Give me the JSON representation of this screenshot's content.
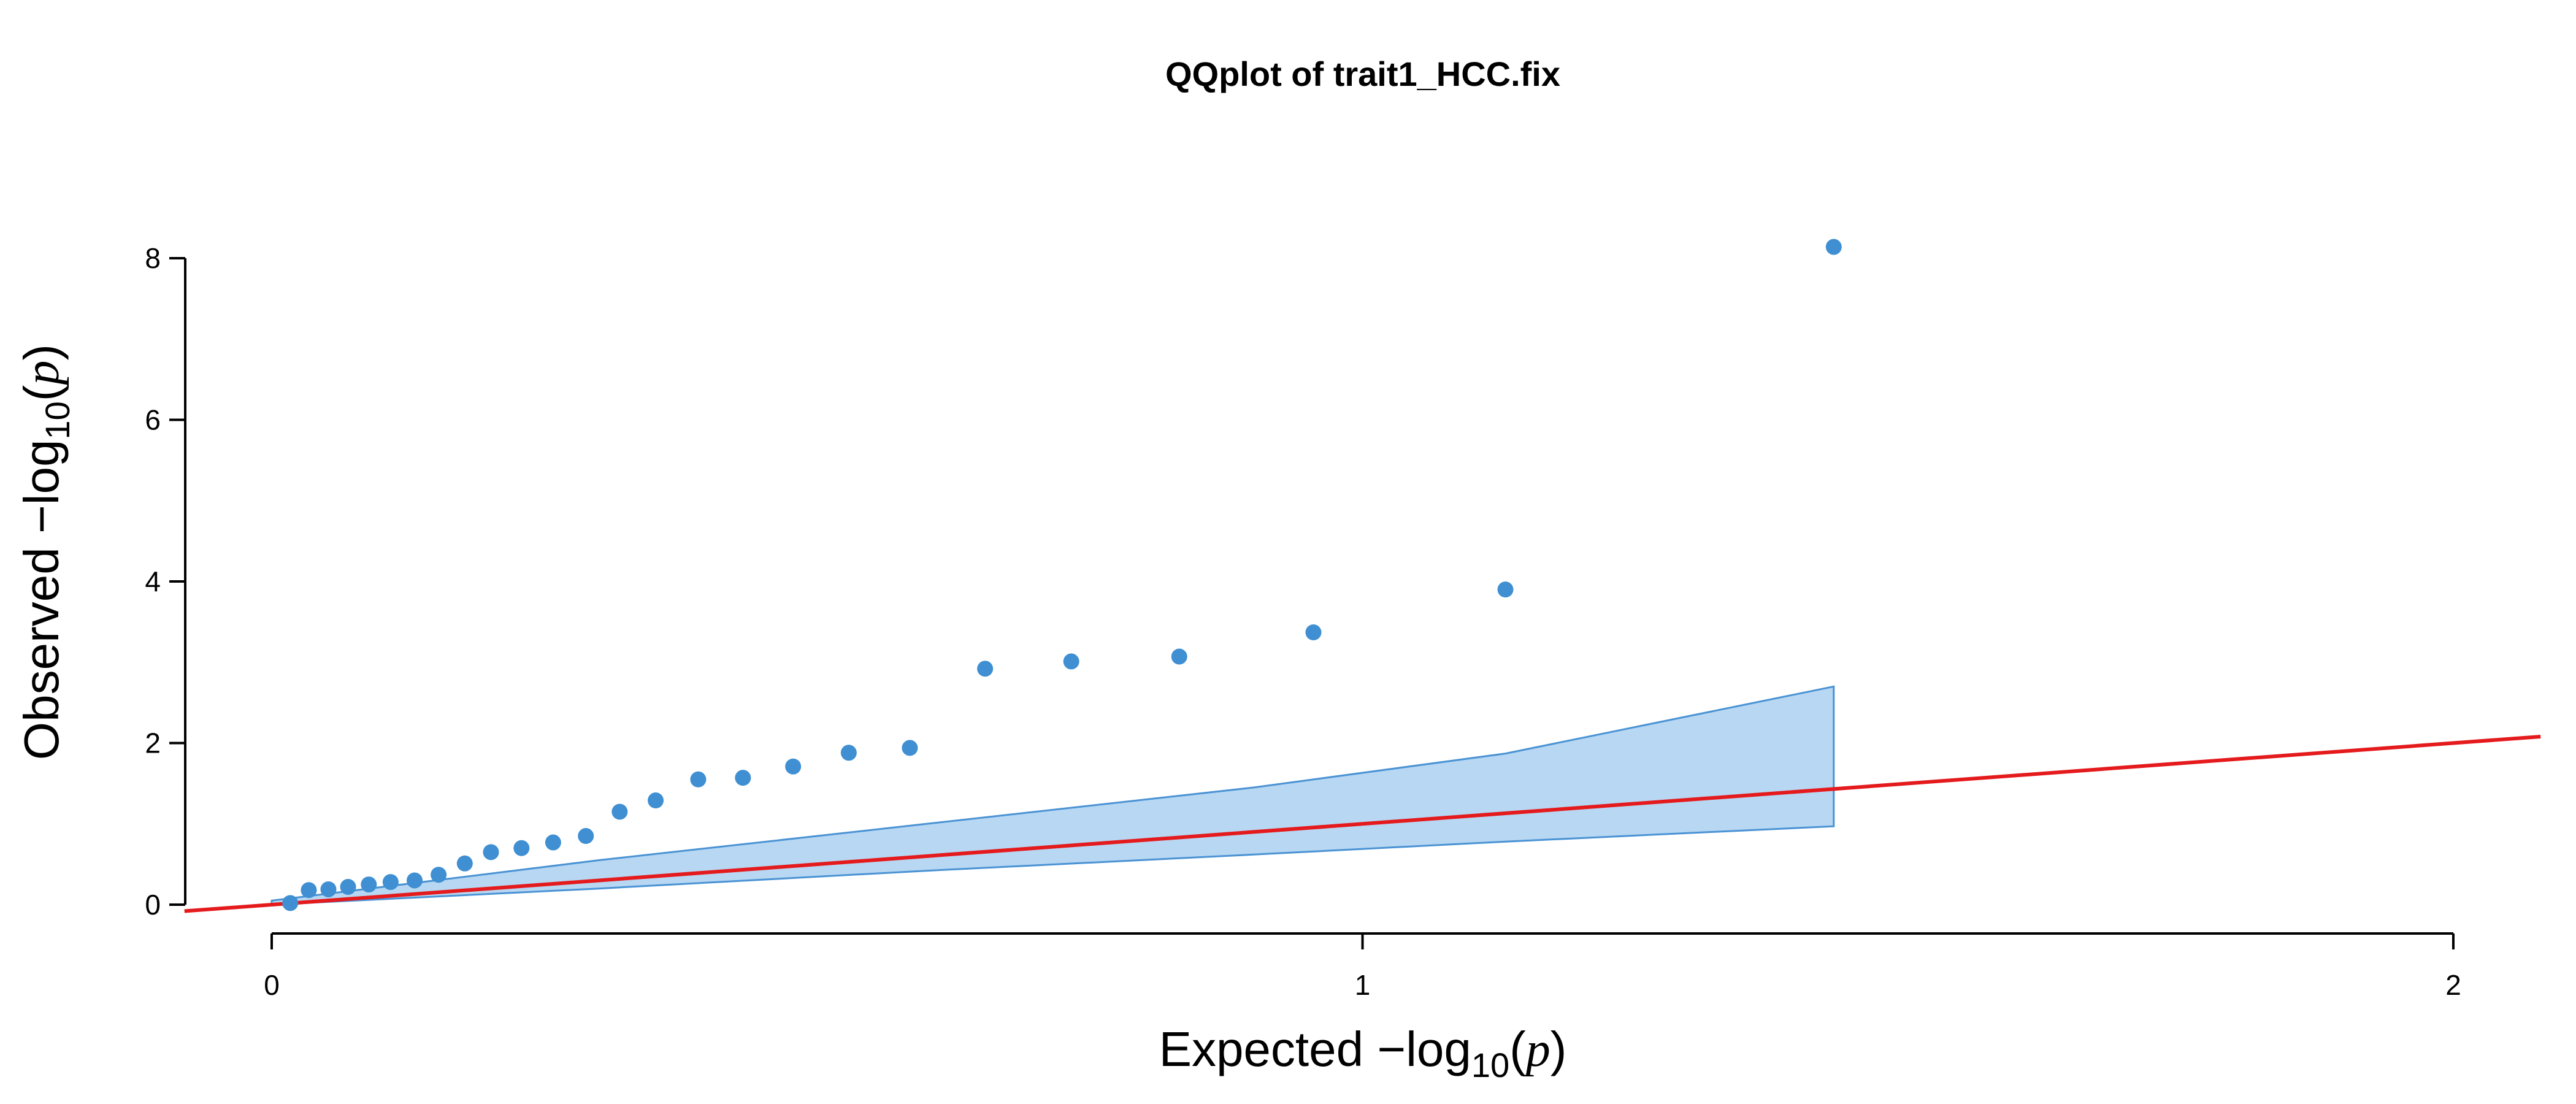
{
  "chart_data": {
    "type": "scatter",
    "title": "QQplot of trait1_HCC.fix",
    "xlabel": {
      "prefix": "Expected  −log",
      "sub": "10",
      "open": "(",
      "var": "p",
      "close": ")"
    },
    "ylabel": {
      "prefix": "Observed  −log",
      "sub": "10",
      "open": "(",
      "var": "p",
      "close": ")"
    },
    "xlim": [
      -0.08,
      2.08
    ],
    "ylim": [
      -0.1,
      8.3
    ],
    "x_ticks": [
      0,
      1,
      2
    ],
    "x_tick_labels": [
      "0",
      "1",
      "2"
    ],
    "y_ticks": [
      0,
      2,
      4,
      6,
      8
    ],
    "y_tick_labels": [
      "0",
      "2",
      "4",
      "6",
      "8"
    ],
    "points": [
      {
        "x": 0.017,
        "y": 0.02
      },
      {
        "x": 0.034,
        "y": 0.18
      },
      {
        "x": 0.052,
        "y": 0.19
      },
      {
        "x": 0.07,
        "y": 0.22
      },
      {
        "x": 0.089,
        "y": 0.25
      },
      {
        "x": 0.109,
        "y": 0.28
      },
      {
        "x": 0.131,
        "y": 0.3
      },
      {
        "x": 0.153,
        "y": 0.37
      },
      {
        "x": 0.177,
        "y": 0.51
      },
      {
        "x": 0.201,
        "y": 0.65
      },
      {
        "x": 0.229,
        "y": 0.7
      },
      {
        "x": 0.258,
        "y": 0.77
      },
      {
        "x": 0.288,
        "y": 0.85
      },
      {
        "x": 0.319,
        "y": 1.15
      },
      {
        "x": 0.352,
        "y": 1.29
      },
      {
        "x": 0.391,
        "y": 1.55
      },
      {
        "x": 0.432,
        "y": 1.57
      },
      {
        "x": 0.478,
        "y": 1.71
      },
      {
        "x": 0.529,
        "y": 1.88
      },
      {
        "x": 0.585,
        "y": 1.94
      },
      {
        "x": 0.654,
        "y": 2.92
      },
      {
        "x": 0.733,
        "y": 3.01
      },
      {
        "x": 0.832,
        "y": 3.07
      },
      {
        "x": 0.955,
        "y": 3.37
      },
      {
        "x": 1.131,
        "y": 3.9
      },
      {
        "x": 1.432,
        "y": 8.14
      }
    ],
    "confidence_band": {
      "x": [
        0.0,
        0.3,
        0.6,
        0.9,
        1.131,
        1.432
      ],
      "upper": [
        0.05,
        0.55,
        1.0,
        1.45,
        1.87,
        2.7
      ],
      "lower": [
        0.0,
        0.2,
        0.42,
        0.62,
        0.78,
        0.97
      ]
    },
    "reference_line": {
      "slope": 1,
      "intercept": 0,
      "x_from": -0.08,
      "x_to": 2.08
    },
    "colors": {
      "points": "#3f8fd2",
      "band_fill": "#b8d7f2",
      "band_stroke": "#4a93d4",
      "reference_line": "#e41a1c",
      "axis": "#000000"
    },
    "grid": false,
    "legend": "none"
  }
}
